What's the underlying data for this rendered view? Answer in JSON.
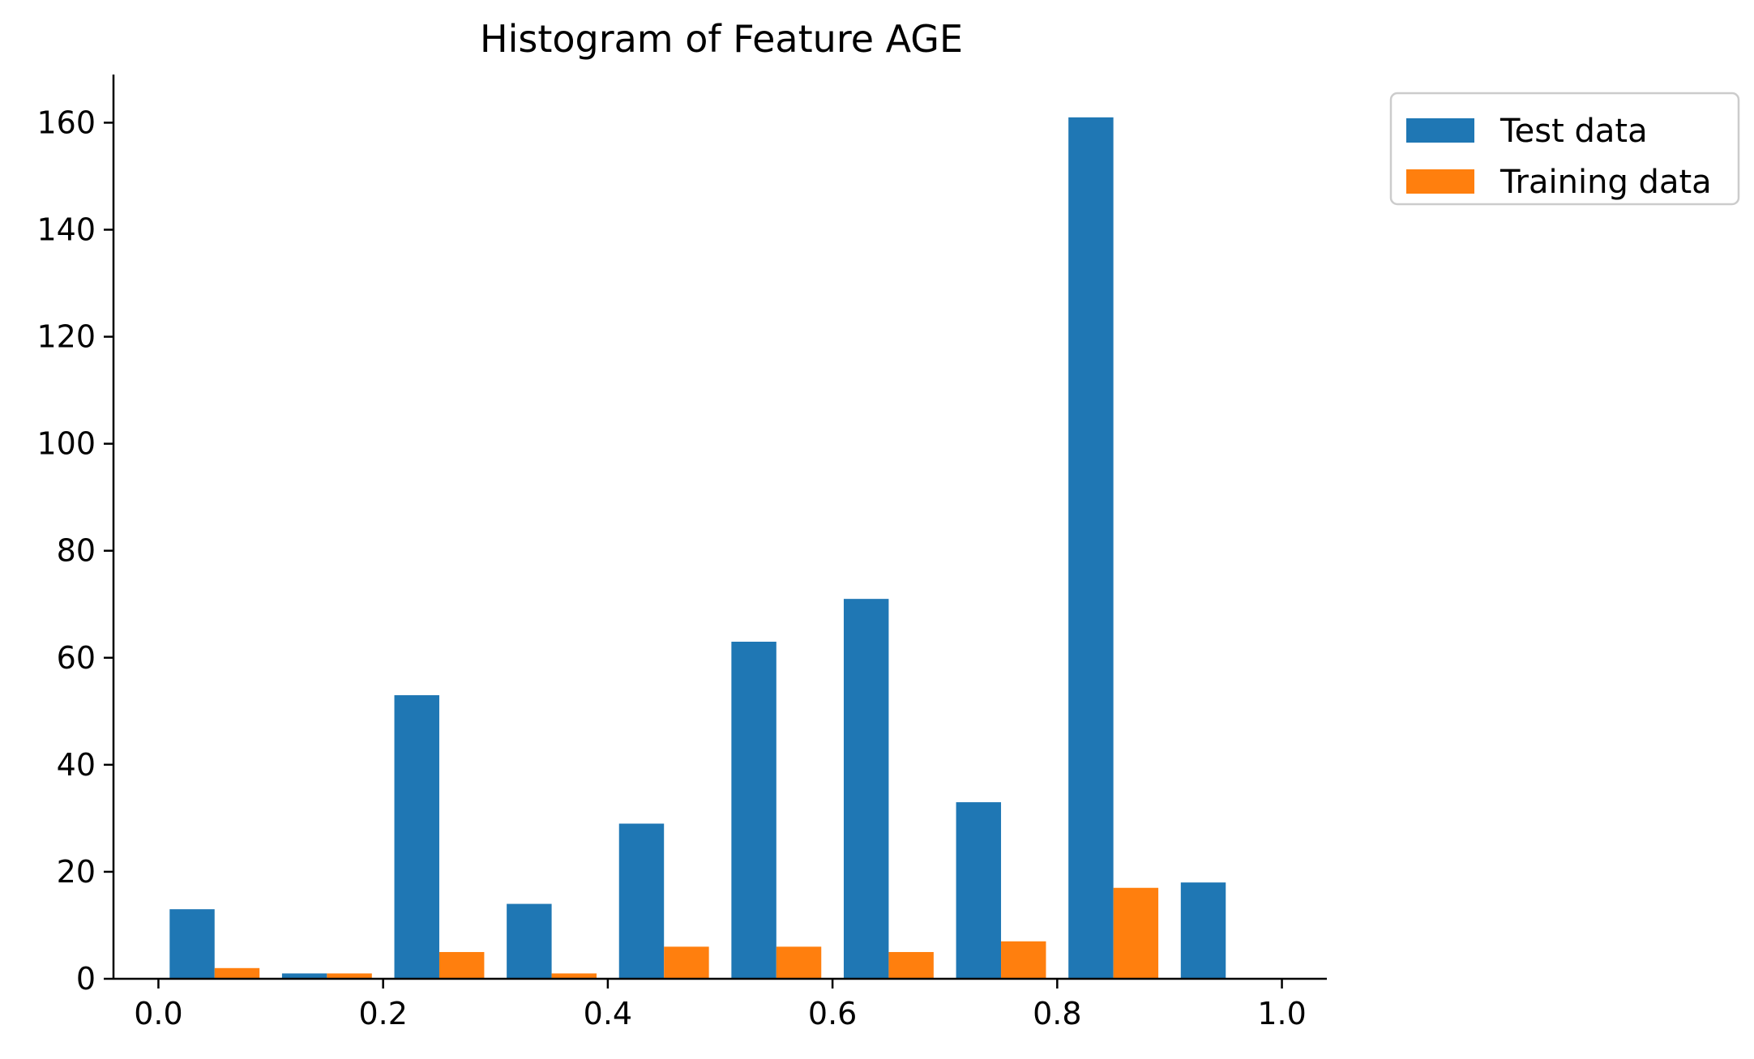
{
  "chart_data": {
    "type": "bar",
    "title": "Histogram of Feature AGE",
    "xlabel": "",
    "ylabel": "",
    "bin_edges": [
      0.0,
      0.1,
      0.2,
      0.3,
      0.4,
      0.5,
      0.6,
      0.7,
      0.8,
      0.9,
      1.0
    ],
    "series": [
      {
        "name": "Test data",
        "color": "#1f77b4",
        "values": [
          13,
          1,
          53,
          14,
          29,
          63,
          71,
          33,
          161,
          18
        ]
      },
      {
        "name": "Training data",
        "color": "#ff7f0e",
        "values": [
          2,
          1,
          5,
          1,
          6,
          6,
          5,
          7,
          17,
          0
        ]
      }
    ],
    "xlim": [
      -0.04,
      1.04
    ],
    "ylim": [
      0,
      169
    ],
    "xticks": [
      "0.0",
      "0.2",
      "0.4",
      "0.6",
      "0.8",
      "1.0"
    ],
    "yticks": [
      "0",
      "20",
      "40",
      "60",
      "80",
      "100",
      "120",
      "140",
      "160"
    ],
    "legend_position": "outside-top-right",
    "grid": false
  }
}
